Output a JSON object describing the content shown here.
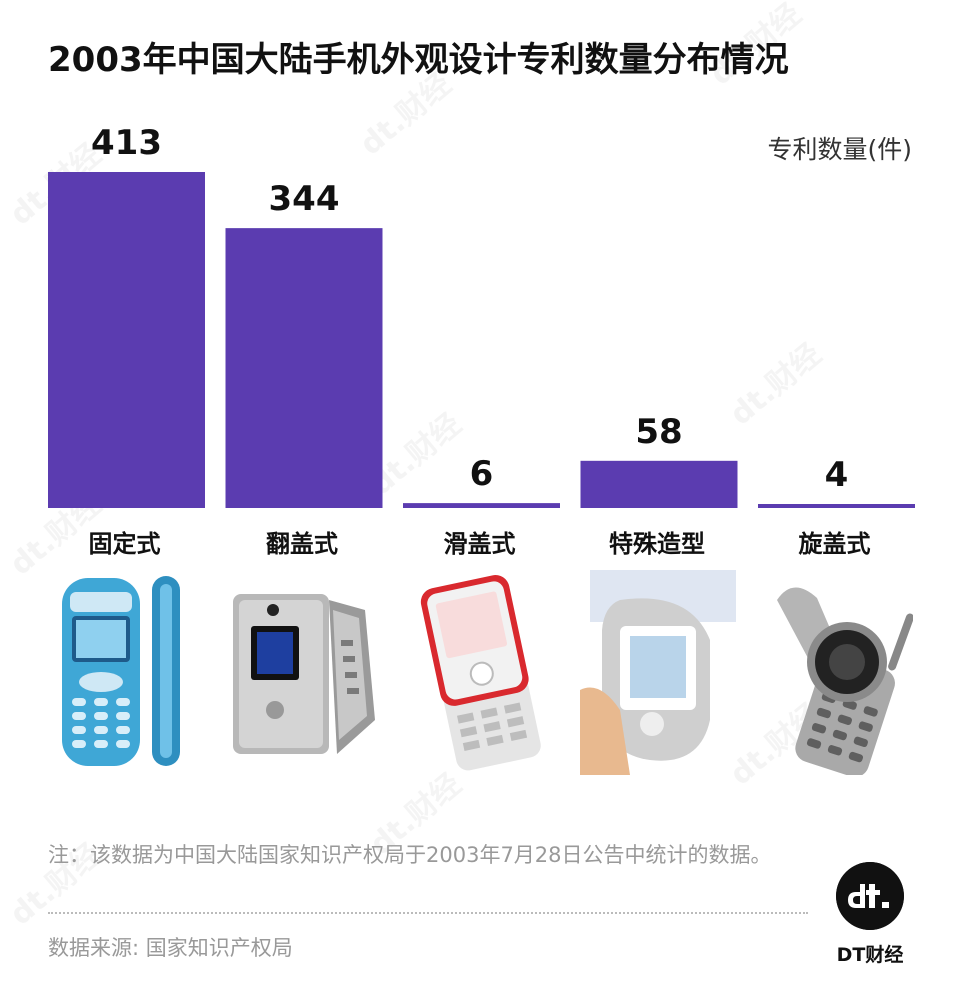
{
  "title": "2003年中国大陆手机外观设计专利数量分布情况",
  "unit_label": "专利数量(件)",
  "chart_data": {
    "type": "bar",
    "title": "2003年中国大陆手机外观设计专利数量分布情况",
    "ylabel": "专利数量(件)",
    "categories": [
      "固定式",
      "翻盖式",
      "滑盖式",
      "特殊造型",
      "旋盖式"
    ],
    "values": [
      413,
      344,
      6,
      58,
      4
    ],
    "ylim": [
      0,
      413
    ],
    "bar_color": "#5b3cb0",
    "grid": false,
    "legend": "none"
  },
  "note": "注：该数据为中国大陆国家知识产权局于2003年7月28日公告中统计的数据。",
  "source": "数据来源: 国家知识产权局",
  "brand": {
    "logo_text": "DT财经",
    "watermark": "dt.财经"
  },
  "phones": [
    {
      "icon": "bar-phone-icon",
      "color": "#3fa7d6"
    },
    {
      "icon": "flip-phone-icon",
      "color": "#b8b8b8"
    },
    {
      "icon": "slide-phone-icon",
      "color": "#d9292e"
    },
    {
      "icon": "special-shape-phone-icon",
      "color": "#c9c9c9"
    },
    {
      "icon": "swivel-phone-icon",
      "color": "#a9a9a9"
    }
  ]
}
